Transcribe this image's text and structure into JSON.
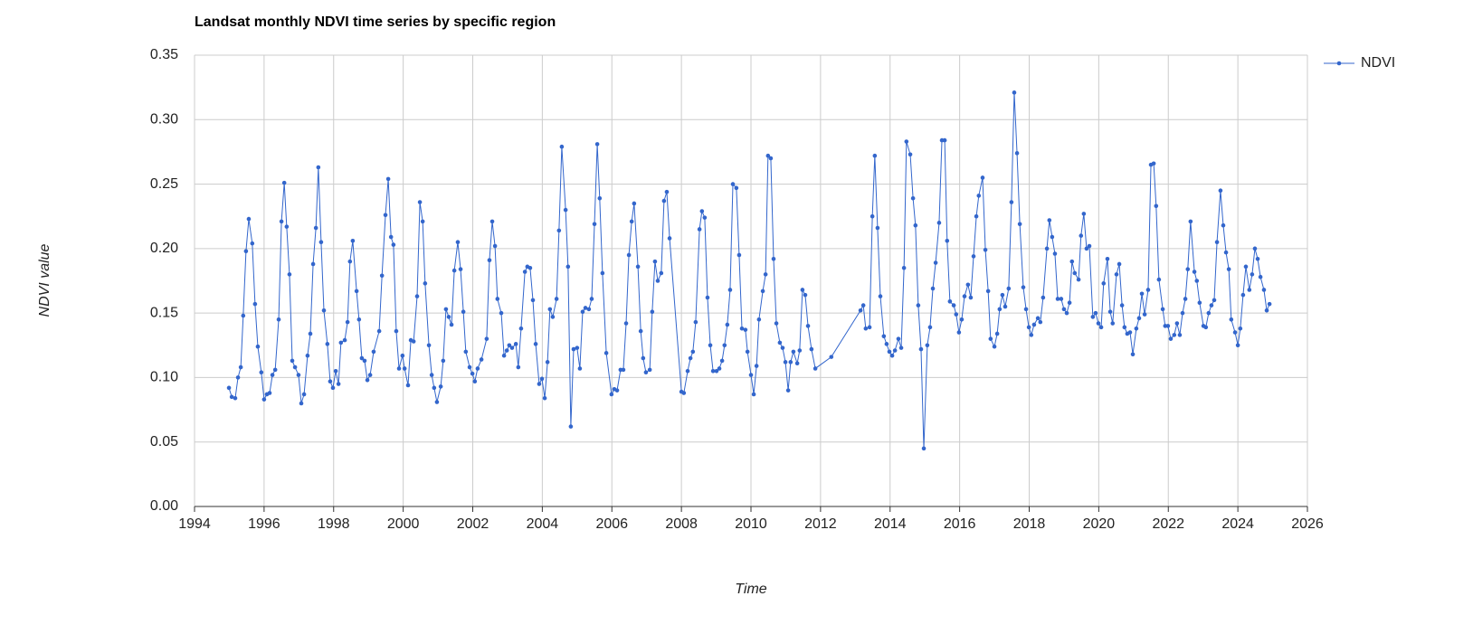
{
  "chart_data": {
    "type": "line",
    "title": "Landsat monthly NDVI time series by specific region",
    "x_label": "Time",
    "y_label": "NDVI value",
    "xlim": [
      1994,
      2026
    ],
    "xticks": [
      1994,
      1996,
      1998,
      2000,
      2002,
      2004,
      2006,
      2008,
      2010,
      2012,
      2014,
      2016,
      2018,
      2020,
      2022,
      2024,
      2026
    ],
    "ylim": [
      0,
      0.35
    ],
    "yticks": [
      {
        "value": 0,
        "label": "0.00"
      },
      {
        "value": 0.05,
        "label": "0.05"
      },
      {
        "value": 0.1,
        "label": "0.10"
      },
      {
        "value": 0.15,
        "label": "0.15"
      },
      {
        "value": 0.2,
        "label": "0.20"
      },
      {
        "value": 0.25,
        "label": "0.25"
      },
      {
        "value": 0.3,
        "label": "0.30"
      },
      {
        "value": 0.35,
        "label": "0.35"
      }
    ],
    "grid": true,
    "legend": "right",
    "x": [
      1994.99,
      1995.07,
      1995.17,
      1995.25,
      1995.33,
      1995.4,
      1995.48,
      1995.56,
      1995.66,
      1995.74,
      1995.82,
      1995.92,
      1996.0,
      1996.08,
      1996.16,
      1996.24,
      1996.32,
      1996.42,
      1996.5,
      1996.58,
      1996.65,
      1996.73,
      1996.81,
      1996.89,
      1996.99,
      1997.07,
      1997.15,
      1997.25,
      1997.33,
      1997.41,
      1997.49,
      1997.56,
      1997.64,
      1997.72,
      1997.82,
      1997.9,
      1997.98,
      1998.06,
      1998.14,
      1998.21,
      1998.32,
      1998.4,
      1998.47,
      1998.55,
      1998.66,
      1998.73,
      1998.81,
      1998.89,
      1998.97,
      1999.05,
      1999.15,
      1999.31,
      1999.39,
      1999.49,
      1999.57,
      1999.65,
      1999.72,
      1999.8,
      1999.88,
      1999.98,
      2000.04,
      2000.14,
      2000.22,
      2000.3,
      2000.4,
      2000.48,
      2000.56,
      2000.63,
      2000.74,
      2000.82,
      2000.89,
      2000.97,
      2001.08,
      2001.15,
      2001.23,
      2001.31,
      2001.39,
      2001.47,
      2001.57,
      2001.65,
      2001.73,
      2001.8,
      2001.91,
      2001.99,
      2002.06,
      2002.14,
      2002.25,
      2002.4,
      2002.48,
      2002.56,
      2002.64,
      2002.71,
      2002.82,
      2002.9,
      2002.98,
      2003.05,
      2003.13,
      2003.24,
      2003.31,
      2003.39,
      2003.5,
      2003.57,
      2003.65,
      2003.73,
      2003.81,
      2003.91,
      2003.99,
      2004.07,
      2004.15,
      2004.22,
      2004.3,
      2004.41,
      2004.48,
      2004.56,
      2004.67,
      2004.74,
      2004.82,
      2004.9,
      2005.0,
      2005.08,
      2005.16,
      2005.24,
      2005.34,
      2005.42,
      2005.5,
      2005.58,
      2005.65,
      2005.73,
      2005.84,
      2005.99,
      2006.07,
      2006.15,
      2006.25,
      2006.33,
      2006.41,
      2006.49,
      2006.57,
      2006.64,
      2006.75,
      2006.83,
      2006.9,
      2006.98,
      2007.09,
      2007.16,
      2007.24,
      2007.32,
      2007.42,
      2007.5,
      2007.58,
      2007.66,
      2008.0,
      2008.07,
      2008.18,
      2008.26,
      2008.33,
      2008.41,
      2008.52,
      2008.59,
      2008.67,
      2008.75,
      2008.83,
      2008.91,
      2009.01,
      2009.09,
      2009.17,
      2009.24,
      2009.32,
      2009.4,
      2009.48,
      2009.58,
      2009.66,
      2009.74,
      2009.84,
      2009.9,
      2010.0,
      2010.08,
      2010.16,
      2010.23,
      2010.34,
      2010.42,
      2010.49,
      2010.57,
      2010.65,
      2010.73,
      2010.83,
      2010.91,
      2010.99,
      2011.07,
      2011.14,
      2011.22,
      2011.33,
      2011.4,
      2011.48,
      2011.56,
      2011.64,
      2011.74,
      2011.85,
      2012.31,
      2013.15,
      2013.23,
      2013.3,
      2013.41,
      2013.49,
      2013.56,
      2013.64,
      2013.72,
      2013.82,
      2013.9,
      2013.98,
      2014.06,
      2014.14,
      2014.24,
      2014.32,
      2014.4,
      2014.47,
      2014.58,
      2014.66,
      2014.73,
      2014.81,
      2014.89,
      2014.97,
      2015.07,
      2015.15,
      2015.23,
      2015.31,
      2015.41,
      2015.49,
      2015.57,
      2015.64,
      2015.72,
      2015.83,
      2015.9,
      2015.98,
      2016.06,
      2016.14,
      2016.24,
      2016.32,
      2016.4,
      2016.48,
      2016.55,
      2016.66,
      2016.74,
      2016.82,
      2016.89,
      2017.0,
      2017.08,
      2017.15,
      2017.23,
      2017.31,
      2017.41,
      2017.49,
      2017.57,
      2017.65,
      2017.73,
      2017.83,
      2017.91,
      2017.99,
      2018.06,
      2018.14,
      2018.25,
      2018.32,
      2018.4,
      2018.51,
      2018.58,
      2018.66,
      2018.74,
      2018.82,
      2018.92,
      2019.0,
      2019.08,
      2019.16,
      2019.23,
      2019.31,
      2019.42,
      2019.49,
      2019.57,
      2019.65,
      2019.73,
      2019.83,
      2019.91,
      2019.99,
      2020.07,
      2020.14,
      2020.25,
      2020.33,
      2020.4,
      2020.51,
      2020.59,
      2020.67,
      2020.74,
      2020.82,
      2020.9,
      2020.98,
      2021.08,
      2021.16,
      2021.24,
      2021.32,
      2021.42,
      2021.5,
      2021.58,
      2021.65,
      2021.73,
      2021.84,
      2021.91,
      2021.99,
      2022.07,
      2022.17,
      2022.25,
      2022.33,
      2022.41,
      2022.49,
      2022.56,
      2022.64,
      2022.75,
      2022.82,
      2022.9,
      2023.01,
      2023.08,
      2023.16,
      2023.24,
      2023.32,
      2023.4,
      2023.5,
      2023.58,
      2023.66,
      2023.74,
      2023.81,
      2023.92,
      2024.0,
      2024.07,
      2024.15,
      2024.23,
      2024.33,
      2024.41,
      2024.49,
      2024.57,
      2024.65,
      2024.75,
      2024.83,
      2024.91
    ],
    "series": [
      {
        "name": "NDVI",
        "color": "#3366cc",
        "values": [
          0.092,
          0.085,
          0.084,
          0.1,
          0.108,
          0.148,
          0.198,
          0.223,
          0.204,
          0.157,
          0.124,
          0.104,
          0.083,
          0.087,
          0.088,
          0.102,
          0.106,
          0.145,
          0.221,
          0.251,
          0.217,
          0.18,
          0.113,
          0.108,
          0.102,
          0.08,
          0.087,
          0.117,
          0.134,
          0.188,
          0.216,
          0.263,
          0.205,
          0.152,
          0.126,
          0.097,
          0.092,
          0.105,
          0.095,
          0.127,
          0.129,
          0.143,
          0.19,
          0.206,
          0.167,
          0.145,
          0.115,
          0.113,
          0.098,
          0.102,
          0.12,
          0.136,
          0.179,
          0.226,
          0.254,
          0.209,
          0.203,
          0.136,
          0.107,
          0.117,
          0.107,
          0.094,
          0.129,
          0.128,
          0.163,
          0.236,
          0.221,
          0.173,
          0.125,
          0.102,
          0.092,
          0.081,
          0.093,
          0.113,
          0.153,
          0.147,
          0.141,
          0.183,
          0.205,
          0.184,
          0.151,
          0.12,
          0.108,
          0.103,
          0.097,
          0.107,
          0.114,
          0.13,
          0.191,
          0.221,
          0.202,
          0.161,
          0.15,
          0.117,
          0.121,
          0.125,
          0.123,
          0.126,
          0.108,
          0.138,
          0.182,
          0.186,
          0.185,
          0.16,
          0.126,
          0.095,
          0.099,
          0.084,
          0.112,
          0.153,
          0.147,
          0.161,
          0.214,
          0.279,
          0.23,
          0.186,
          0.062,
          0.122,
          0.123,
          0.107,
          0.151,
          0.154,
          0.153,
          0.161,
          0.219,
          0.281,
          0.239,
          0.181,
          0.119,
          0.087,
          0.091,
          0.09,
          0.106,
          0.106,
          0.142,
          0.195,
          0.221,
          0.235,
          0.186,
          0.136,
          0.115,
          0.104,
          0.106,
          0.151,
          0.19,
          0.175,
          0.181,
          0.237,
          0.244,
          0.208,
          0.089,
          0.088,
          0.105,
          0.115,
          0.12,
          0.143,
          0.215,
          0.229,
          0.224,
          0.162,
          0.125,
          0.105,
          0.105,
          0.107,
          0.113,
          0.125,
          0.141,
          0.168,
          0.25,
          0.247,
          0.195,
          0.138,
          0.137,
          0.12,
          0.102,
          0.087,
          0.109,
          0.145,
          0.167,
          0.18,
          0.272,
          0.27,
          0.192,
          0.142,
          0.127,
          0.123,
          0.112,
          0.09,
          0.112,
          0.12,
          0.111,
          0.121,
          0.168,
          0.164,
          0.14,
          0.122,
          0.107,
          0.116,
          0.152,
          0.156,
          0.138,
          0.139,
          0.225,
          0.272,
          0.216,
          0.163,
          0.132,
          0.126,
          0.12,
          0.117,
          0.121,
          0.13,
          0.123,
          0.185,
          0.283,
          0.273,
          0.239,
          0.218,
          0.156,
          0.122,
          0.045,
          0.125,
          0.139,
          0.169,
          0.189,
          0.22,
          0.284,
          0.284,
          0.206,
          0.159,
          0.156,
          0.149,
          0.135,
          0.145,
          0.163,
          0.172,
          0.162,
          0.194,
          0.225,
          0.241,
          0.255,
          0.199,
          0.167,
          0.13,
          0.124,
          0.134,
          0.153,
          0.164,
          0.155,
          0.169,
          0.236,
          0.321,
          0.274,
          0.219,
          0.17,
          0.153,
          0.139,
          0.133,
          0.141,
          0.146,
          0.143,
          0.162,
          0.2,
          0.222,
          0.209,
          0.196,
          0.161,
          0.161,
          0.153,
          0.15,
          0.158,
          0.19,
          0.181,
          0.176,
          0.21,
          0.227,
          0.2,
          0.202,
          0.147,
          0.15,
          0.142,
          0.139,
          0.173,
          0.192,
          0.151,
          0.142,
          0.18,
          0.188,
          0.156,
          0.139,
          0.134,
          0.135,
          0.118,
          0.138,
          0.146,
          0.165,
          0.149,
          0.168,
          0.265,
          0.266,
          0.233,
          0.176,
          0.153,
          0.14,
          0.14,
          0.13,
          0.133,
          0.142,
          0.133,
          0.15,
          0.161,
          0.184,
          0.221,
          0.182,
          0.175,
          0.158,
          0.14,
          0.139,
          0.15,
          0.156,
          0.16,
          0.205,
          0.245,
          0.218,
          0.197,
          0.184,
          0.145,
          0.135,
          0.125,
          0.138,
          0.164,
          0.186,
          0.168,
          0.18,
          0.2,
          0.192,
          0.178,
          0.168,
          0.152,
          0.157
        ]
      }
    ]
  }
}
